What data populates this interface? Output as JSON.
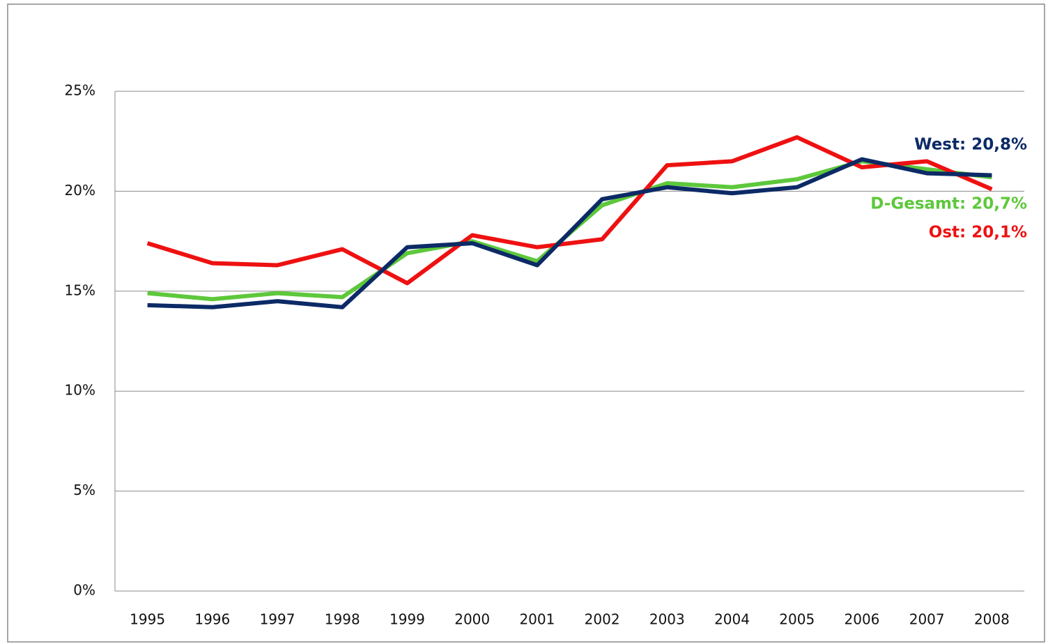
{
  "chart_data": {
    "type": "line",
    "categories": [
      "1995",
      "1996",
      "1997",
      "1998",
      "1999",
      "2000",
      "2001",
      "2002",
      "2003",
      "2004",
      "2005",
      "2006",
      "2007",
      "2008"
    ],
    "series": [
      {
        "color": "#5dc83b",
        "values": [
          14.9,
          14.6,
          14.9,
          14.7,
          16.9,
          17.5,
          16.5,
          19.3,
          20.4,
          20.2,
          20.6,
          21.5,
          21.1,
          20.7
        ]
      },
      {
        "color": "#ee1111",
        "values": [
          17.4,
          16.4,
          16.3,
          17.1,
          15.4,
          17.8,
          17.2,
          17.6,
          21.3,
          21.5,
          22.7,
          21.2,
          21.5,
          20.1
        ]
      },
      {
        "color": "#0c2a66",
        "values": [
          14.3,
          14.2,
          14.5,
          14.2,
          17.2,
          17.4,
          16.3,
          19.6,
          20.2,
          19.9,
          20.2,
          21.6,
          20.9,
          20.8
        ]
      }
    ],
    "annotations": [
      {
        "text": "West: 20,8%",
        "color": "#0c2a66"
      },
      {
        "text": "D-Gesamt: 20,7%",
        "color": "#5dc83b"
      },
      {
        "text": "Ost: 20,1%",
        "color": "#ee1111"
      }
    ],
    "ylim": [
      0,
      25
    ],
    "yticks": [
      {
        "value": 0,
        "label": "0%"
      },
      {
        "value": 5,
        "label": "5%"
      },
      {
        "value": 10,
        "label": "10%"
      },
      {
        "value": 15,
        "label": "15%"
      },
      {
        "value": 20,
        "label": "20%"
      },
      {
        "value": 25,
        "label": "25%"
      }
    ],
    "grid": true
  }
}
